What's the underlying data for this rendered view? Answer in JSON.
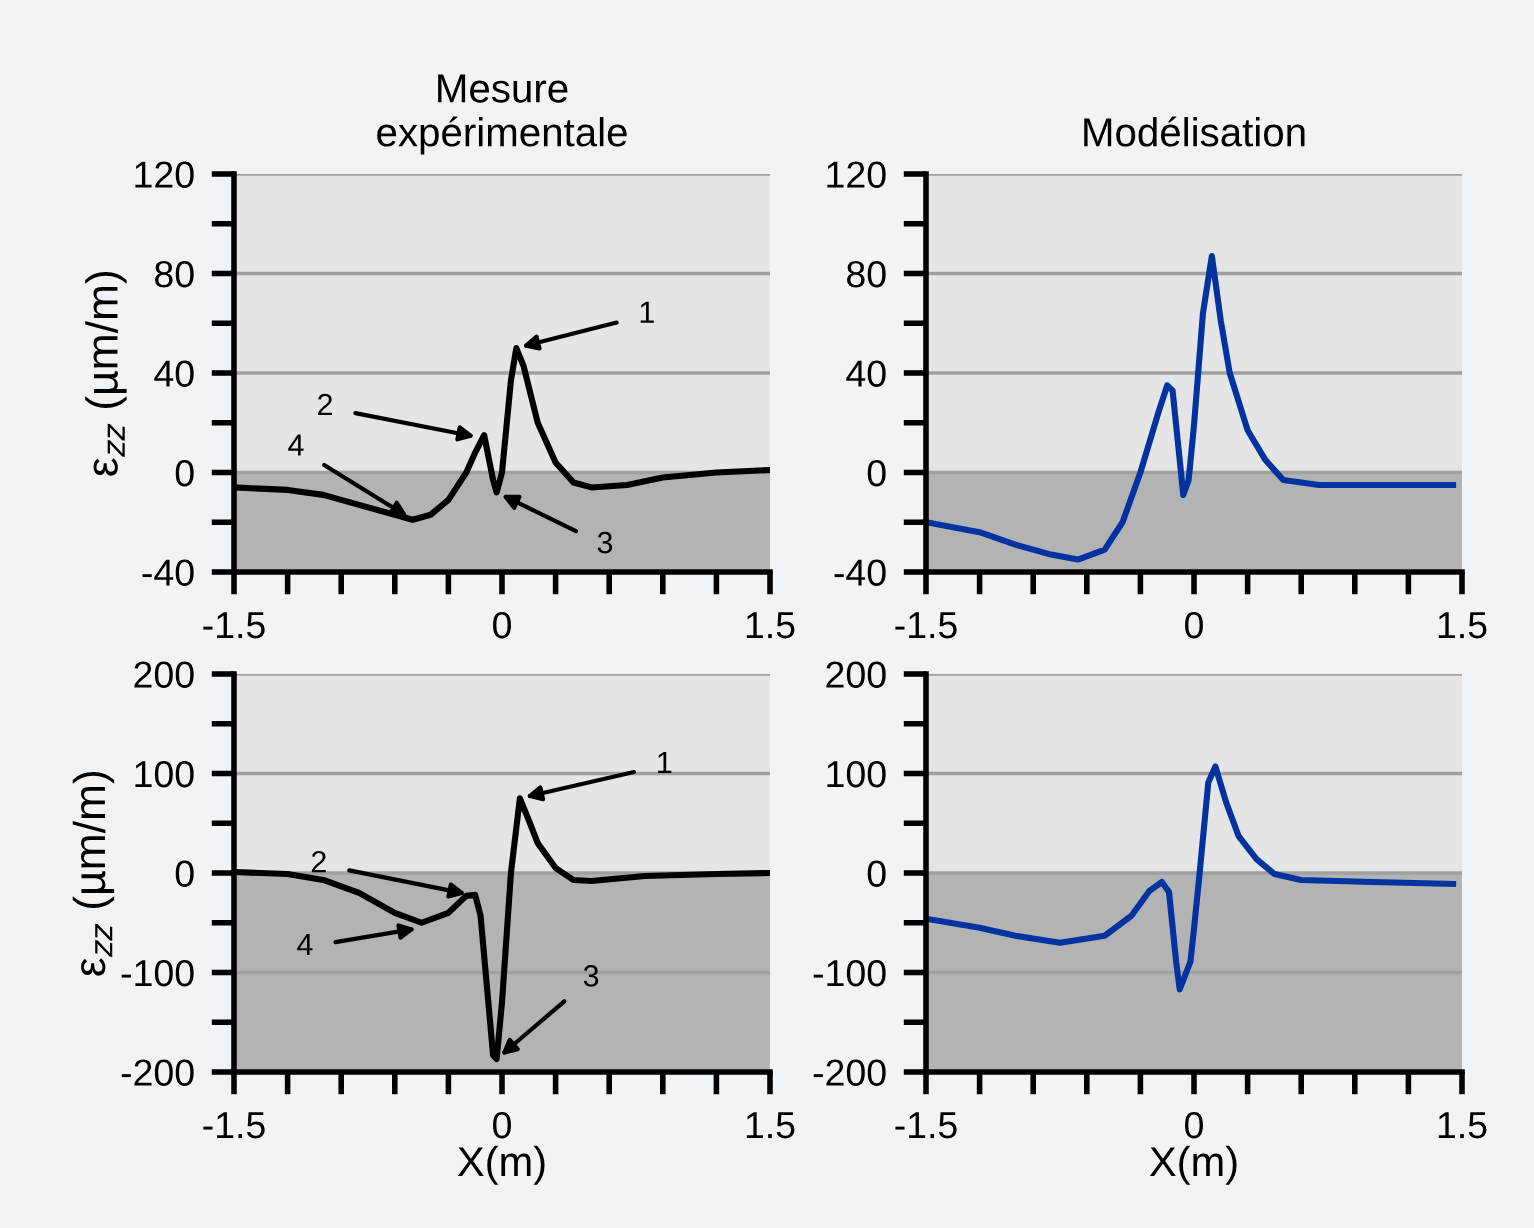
{
  "chart_data": [
    {
      "type": "line",
      "title": "Mesure\nexpérimentale",
      "ylabel": "ε$_{zz}$ (µm/m)",
      "x": [
        -1.5,
        -1.2,
        -1.0,
        -0.8,
        -0.6,
        -0.5,
        -0.4,
        -0.3,
        -0.2,
        -0.15,
        -0.1,
        -0.05,
        -0.03,
        0.0,
        0.05,
        0.08,
        0.12,
        0.2,
        0.3,
        0.4,
        0.5,
        0.7,
        0.9,
        1.2,
        1.5
      ],
      "series": [
        {
          "color": "#000000",
          "values": [
            -6,
            -7,
            -9,
            -13,
            -17,
            -19,
            -17,
            -11,
            0,
            8,
            15,
            -3,
            -8,
            0,
            37,
            50,
            43,
            20,
            4,
            -4,
            -6,
            -5,
            -2,
            0,
            1
          ]
        }
      ],
      "xlim": [
        -1.5,
        1.5
      ],
      "xticks": [
        -1.5,
        {
          "value": -1.2,
          "label": null
        },
        {
          "value": -0.9,
          "label": null
        },
        {
          "value": -0.6,
          "label": null
        },
        {
          "value": -0.3,
          "label": null
        },
        0,
        {
          "value": 0.3,
          "label": null
        },
        {
          "value": 0.6,
          "label": null
        },
        {
          "value": 0.9,
          "label": null
        },
        {
          "value": 1.2,
          "label": null
        },
        1.5
      ],
      "ylim": [
        -40,
        120
      ],
      "yticks": [
        -40,
        {
          "value": -20,
          "label": null
        },
        0,
        {
          "value": 20,
          "label": null
        },
        40,
        {
          "value": 60,
          "label": null
        },
        80,
        {
          "value": 100,
          "label": null
        },
        120
      ],
      "grid": "y",
      "bands": [
        {
          "axis": "y",
          "from": 0,
          "to": 120,
          "color": "#e5e5e5"
        },
        {
          "axis": "y",
          "from": -40,
          "to": 0,
          "color": "#b3b3b3"
        }
      ],
      "annotations": [
        {
          "text": "1",
          "x": 0.08,
          "y": 50
        },
        {
          "text": "2",
          "x": -0.12,
          "y": 14
        },
        {
          "text": "3",
          "x": -0.03,
          "y": -8
        },
        {
          "text": "4",
          "x": -0.5,
          "y": -19
        }
      ]
    },
    {
      "type": "line",
      "title": "Modélisation",
      "x": [
        -1.5,
        -1.2,
        -1.0,
        -0.8,
        -0.65,
        -0.5,
        -0.4,
        -0.3,
        -0.2,
        -0.15,
        -0.12,
        -0.08,
        -0.06,
        -0.03,
        0.0,
        0.05,
        0.1,
        0.15,
        0.2,
        0.3,
        0.4,
        0.5,
        0.7,
        1.0,
        1.45
      ],
      "series": [
        {
          "color": "#0033a0",
          "values": [
            -20,
            -24,
            -29,
            -33,
            -35,
            -31,
            -20,
            0,
            24,
            35,
            33,
            5,
            -9,
            -3,
            19,
            64,
            87,
            61,
            40,
            17,
            5,
            -3,
            -5,
            -5,
            -5
          ]
        }
      ],
      "xlim": [
        -1.5,
        1.5
      ],
      "xticks": [
        -1.5,
        {
          "value": -1.2,
          "label": null
        },
        {
          "value": -0.9,
          "label": null
        },
        {
          "value": -0.6,
          "label": null
        },
        {
          "value": -0.3,
          "label": null
        },
        0,
        {
          "value": 0.3,
          "label": null
        },
        {
          "value": 0.6,
          "label": null
        },
        {
          "value": 0.9,
          "label": null
        },
        {
          "value": 1.2,
          "label": null
        },
        1.5
      ],
      "ylim": [
        -40,
        120
      ],
      "yticks": [
        -40,
        {
          "value": -20,
          "label": null
        },
        0,
        {
          "value": 20,
          "label": null
        },
        40,
        {
          "value": 60,
          "label": null
        },
        80,
        {
          "value": 100,
          "label": null
        },
        120
      ],
      "grid": "y",
      "bands": [
        {
          "axis": "y",
          "from": 0,
          "to": 120,
          "color": "#e5e5e5"
        },
        {
          "axis": "y",
          "from": -40,
          "to": 0,
          "color": "#b3b3b3"
        }
      ]
    },
    {
      "type": "line",
      "ylabel": "ε$_{zz}$ (µm/m)",
      "xlabel": "X(m)",
      "x": [
        -1.5,
        -1.2,
        -1.0,
        -0.8,
        -0.6,
        -0.45,
        -0.3,
        -0.2,
        -0.15,
        -0.12,
        -0.08,
        -0.05,
        -0.03,
        0.0,
        0.05,
        0.1,
        0.15,
        0.2,
        0.3,
        0.4,
        0.5,
        0.8,
        1.2,
        1.5
      ],
      "series": [
        {
          "color": "#000000",
          "values": [
            1,
            -1,
            -7,
            -20,
            -40,
            -50,
            -40,
            -23,
            -22,
            -43,
            -123,
            -183,
            -187,
            -130,
            0,
            75,
            53,
            30,
            5,
            -7,
            -8,
            -3,
            -1,
            0
          ]
        }
      ],
      "xlim": [
        -1.5,
        1.5
      ],
      "xticks": [
        -1.5,
        {
          "value": -1.2,
          "label": null
        },
        {
          "value": -0.9,
          "label": null
        },
        {
          "value": -0.6,
          "label": null
        },
        {
          "value": -0.3,
          "label": null
        },
        0,
        {
          "value": 0.3,
          "label": null
        },
        {
          "value": 0.6,
          "label": null
        },
        {
          "value": 0.9,
          "label": null
        },
        {
          "value": 1.2,
          "label": null
        },
        1.5
      ],
      "ylim": [
        -200,
        200
      ],
      "yticks": [
        -200,
        {
          "value": -150,
          "label": null
        },
        -100,
        {
          "value": -50,
          "label": null
        },
        0,
        {
          "value": 50,
          "label": null
        },
        100,
        {
          "value": 150,
          "label": null
        },
        200
      ],
      "grid": "y",
      "bands": [
        {
          "axis": "y",
          "from": 0,
          "to": 200,
          "color": "#e5e5e5"
        },
        {
          "axis": "y",
          "from": -200,
          "to": 0,
          "color": "#b3b3b3"
        }
      ],
      "annotations": [
        {
          "text": "1",
          "x": 0.1,
          "y": 75
        },
        {
          "text": "2",
          "x": -0.17,
          "y": -22
        },
        {
          "text": "3",
          "x": -0.03,
          "y": -187
        },
        {
          "text": "4",
          "x": -0.45,
          "y": -55
        }
      ]
    },
    {
      "type": "line",
      "xlabel": "X(m)",
      "x": [
        -1.5,
        -1.2,
        -1.0,
        -0.75,
        -0.5,
        -0.35,
        -0.25,
        -0.18,
        -0.14,
        -0.1,
        -0.08,
        -0.05,
        -0.02,
        0.0,
        0.03,
        0.08,
        0.12,
        0.18,
        0.25,
        0.35,
        0.45,
        0.6,
        1.0,
        1.45
      ],
      "series": [
        {
          "color": "#0033a0",
          "values": [
            -46,
            -55,
            -63,
            -70,
            -63,
            -43,
            -18,
            -9,
            -19,
            -89,
            -117,
            -103,
            -89,
            -56,
            -3,
            91,
            107,
            71,
            37,
            14,
            -1,
            -7,
            -9,
            -11
          ]
        }
      ],
      "xlim": [
        -1.5,
        1.5
      ],
      "xticks": [
        -1.5,
        {
          "value": -1.2,
          "label": null
        },
        {
          "value": -0.9,
          "label": null
        },
        {
          "value": -0.6,
          "label": null
        },
        {
          "value": -0.3,
          "label": null
        },
        0,
        {
          "value": 0.3,
          "label": null
        },
        {
          "value": 0.6,
          "label": null
        },
        {
          "value": 0.9,
          "label": null
        },
        {
          "value": 1.2,
          "label": null
        },
        1.5
      ],
      "ylim": [
        -200,
        200
      ],
      "yticks": [
        -200,
        {
          "value": -150,
          "label": null
        },
        -100,
        {
          "value": -50,
          "label": null
        },
        0,
        {
          "value": 50,
          "label": null
        },
        100,
        {
          "value": 150,
          "label": null
        },
        200
      ],
      "grid": "y",
      "bands": [
        {
          "axis": "y",
          "from": 0,
          "to": 200,
          "color": "#e5e5e5"
        },
        {
          "axis": "y",
          "from": -200,
          "to": 0,
          "color": "#b3b3b3"
        }
      ]
    }
  ]
}
